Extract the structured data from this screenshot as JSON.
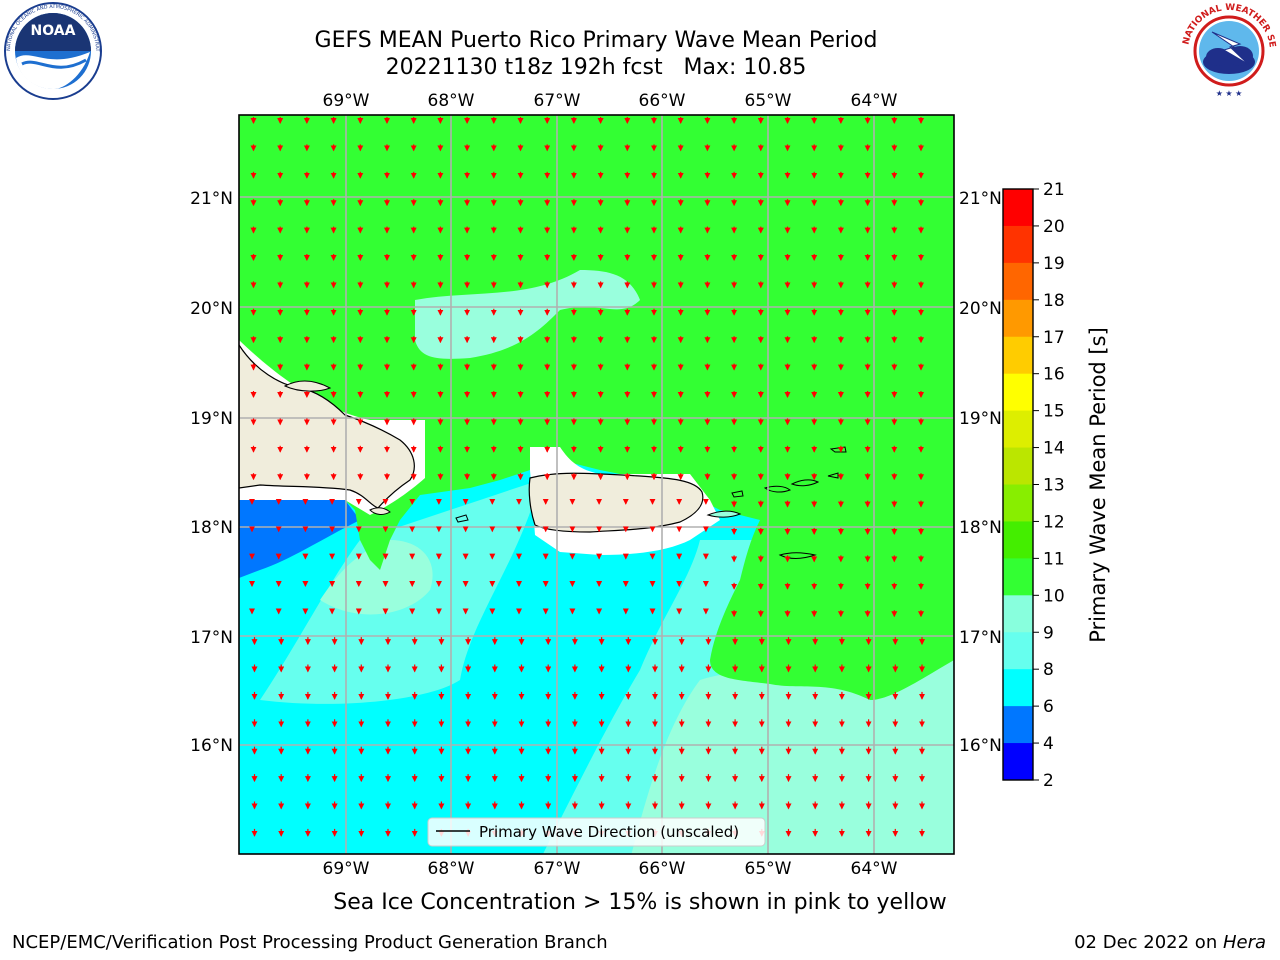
{
  "header": {
    "title_line1": "GEFS MEAN Puerto Rico Primary Wave Mean Period",
    "title_line2": "20221130 t18z 192h fcst   Max: 10.85"
  },
  "logos": {
    "left": "noaa-logo",
    "right": "nws-logo"
  },
  "noaa_logo_text": {
    "center": "NOAA",
    "ring": "NATIONAL OCEANIC AND ATMOSPHERIC ADMINISTRATION · U.S. DEPARTMENT OF COMMERCE"
  },
  "nws_logo_text": {
    "ring": "NATIONAL WEATHER SERVICE"
  },
  "map": {
    "lon_ticks": [
      "69°W",
      "68°W",
      "67°W",
      "66°W",
      "65°W",
      "64°W"
    ],
    "lat_ticks": [
      "21°N",
      "20°N",
      "19°N",
      "18°N",
      "17°N",
      "16°N"
    ],
    "legend_label": "Primary Wave Direction (unscaled)",
    "arrow_color": "#ff0000",
    "land_color": "#f0eddc"
  },
  "colorbar": {
    "label": "Primary Wave Mean Period [s]",
    "levels": [
      "21",
      "20",
      "19",
      "18",
      "17",
      "16",
      "15",
      "14",
      "13",
      "12",
      "11",
      "10",
      "9",
      "8",
      "6",
      "4",
      "2"
    ],
    "colors": [
      "#ff0000",
      "#ff3300",
      "#ff6600",
      "#ff9900",
      "#ffcc00",
      "#ffff00",
      "#ddee00",
      "#bbe600",
      "#88ee00",
      "#44ee00",
      "#33ff33",
      "#88ffdd",
      "#66ffee",
      "#00ffff",
      "#0077ff",
      "#0000ff"
    ]
  },
  "caption": "Sea Ice Concentration > 15% is shown in pink to yellow",
  "footer": {
    "left": "NCEP/EMC/Verification Post Processing Product Generation Branch",
    "right_prefix": "02 Dec 2022 on ",
    "right_host": "Hera"
  }
}
